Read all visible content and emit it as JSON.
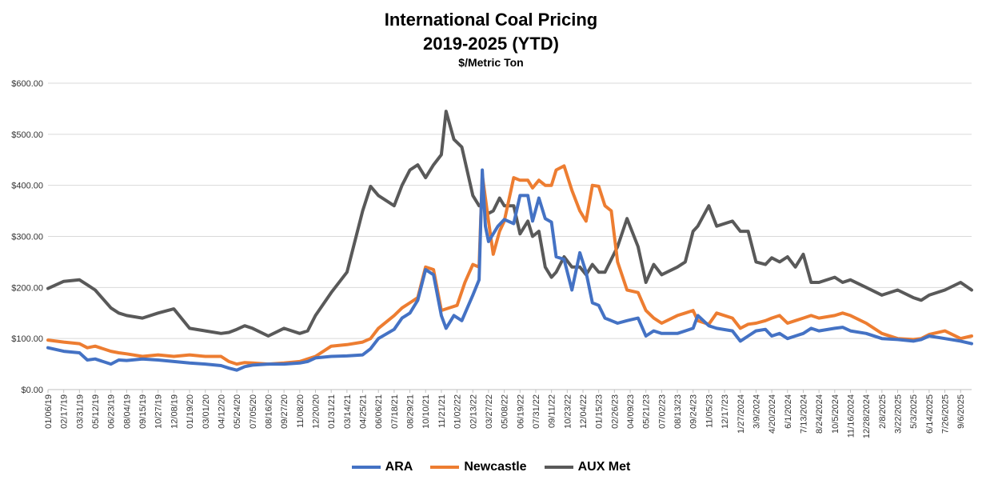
{
  "title": "International Coal Pricing",
  "subtitle": "2019-2025 (YTD)",
  "unit": "$/Metric Ton",
  "chart_data": {
    "type": "line",
    "title": "International Coal Pricing",
    "subtitle": "2019-2025 (YTD)",
    "ylabel": "$/Metric Ton",
    "ylim": [
      0,
      600
    ],
    "yticks": [
      "$0.00",
      "$100.00",
      "$200.00",
      "$300.00",
      "$400.00",
      "$500.00",
      "$600.00"
    ],
    "grid": true,
    "legend_position": "bottom",
    "x_tick_labels": [
      "01/06/19",
      "02/17/19",
      "03/31/19",
      "05/12/19",
      "06/23/19",
      "08/04/19",
      "09/15/19",
      "10/27/19",
      "12/08/19",
      "01/19/20",
      "03/01/20",
      "04/12/20",
      "05/24/20",
      "07/05/20",
      "08/16/20",
      "09/27/20",
      "11/08/20",
      "12/20/20",
      "01/31/21",
      "03/14/21",
      "04/25/21",
      "06/06/21",
      "07/18/21",
      "08/29/21",
      "10/10/21",
      "11/21/21",
      "01/02/22",
      "02/13/22",
      "03/27/22",
      "05/08/22",
      "06/19/22",
      "07/31/22",
      "09/11/22",
      "10/23/22",
      "12/04/22",
      "01/15/23",
      "02/26/23",
      "04/09/23",
      "05/21/23",
      "07/02/23",
      "08/13/23",
      "09/24/23",
      "11/05/23",
      "12/17/23",
      "1/27/2024",
      "3/9/2024",
      "4/20/2024",
      "6/1/2024",
      "7/13/2024",
      "8/24/2024",
      "10/5/2024",
      "11/16/2024",
      "12/28/2024",
      "2/8/2025",
      "3/22/2025",
      "5/3/2025",
      "6/14/2025",
      "7/26/2025",
      "9/6/2025"
    ],
    "x_range": [
      0,
      58.7
    ],
    "series": [
      {
        "name": "ARA",
        "color": "#4472c4",
        "points": [
          [
            0,
            82
          ],
          [
            1,
            75
          ],
          [
            2,
            72
          ],
          [
            2.5,
            58
          ],
          [
            3,
            60
          ],
          [
            4,
            50
          ],
          [
            4.5,
            58
          ],
          [
            5,
            57
          ],
          [
            6,
            60
          ],
          [
            7,
            58
          ],
          [
            8,
            55
          ],
          [
            9,
            52
          ],
          [
            10,
            50
          ],
          [
            11,
            47
          ],
          [
            11.5,
            42
          ],
          [
            12,
            38
          ],
          [
            12.5,
            45
          ],
          [
            13,
            48
          ],
          [
            14,
            50
          ],
          [
            15,
            50
          ],
          [
            16,
            52
          ],
          [
            16.5,
            55
          ],
          [
            17,
            62
          ],
          [
            18,
            65
          ],
          [
            19,
            66
          ],
          [
            20,
            68
          ],
          [
            20.5,
            80
          ],
          [
            21,
            100
          ],
          [
            22,
            118
          ],
          [
            22.5,
            140
          ],
          [
            23,
            150
          ],
          [
            23.5,
            175
          ],
          [
            24,
            235
          ],
          [
            24.5,
            225
          ],
          [
            25,
            145
          ],
          [
            25.3,
            120
          ],
          [
            25.8,
            145
          ],
          [
            26.3,
            135
          ],
          [
            27,
            185
          ],
          [
            27.4,
            215
          ],
          [
            27.6,
            430
          ],
          [
            27.8,
            320
          ],
          [
            28,
            290
          ],
          [
            28.6,
            320
          ],
          [
            29,
            333
          ],
          [
            29.6,
            325
          ],
          [
            30,
            380
          ],
          [
            30.5,
            380
          ],
          [
            30.8,
            330
          ],
          [
            31.2,
            375
          ],
          [
            31.6,
            335
          ],
          [
            32,
            328
          ],
          [
            32.3,
            260
          ],
          [
            32.8,
            255
          ],
          [
            33.3,
            195
          ],
          [
            33.8,
            268
          ],
          [
            34.2,
            230
          ],
          [
            34.6,
            170
          ],
          [
            35,
            165
          ],
          [
            35.4,
            140
          ],
          [
            35.8,
            135
          ],
          [
            36.2,
            130
          ],
          [
            36.8,
            135
          ],
          [
            37.5,
            140
          ],
          [
            38,
            105
          ],
          [
            38.5,
            115
          ],
          [
            39,
            110
          ],
          [
            40,
            110
          ],
          [
            40.5,
            115
          ],
          [
            41,
            120
          ],
          [
            41.3,
            145
          ],
          [
            42,
            125
          ],
          [
            42.5,
            120
          ],
          [
            43.5,
            115
          ],
          [
            44,
            95
          ],
          [
            44.5,
            105
          ],
          [
            45,
            115
          ],
          [
            45.6,
            118
          ],
          [
            46,
            105
          ],
          [
            46.5,
            110
          ],
          [
            47,
            100
          ],
          [
            47.5,
            105
          ],
          [
            48,
            110
          ],
          [
            48.5,
            120
          ],
          [
            49,
            115
          ],
          [
            50,
            120
          ],
          [
            50.5,
            122
          ],
          [
            51,
            115
          ],
          [
            52,
            110
          ],
          [
            53,
            100
          ],
          [
            54,
            98
          ],
          [
            55,
            95
          ],
          [
            55.5,
            98
          ],
          [
            56,
            105
          ],
          [
            57,
            100
          ],
          [
            58,
            95
          ],
          [
            58.7,
            90
          ]
        ]
      },
      {
        "name": "Newcastle",
        "color": "#ed7d31",
        "points": [
          [
            0,
            97
          ],
          [
            1,
            93
          ],
          [
            2,
            90
          ],
          [
            2.5,
            82
          ],
          [
            3,
            85
          ],
          [
            4,
            75
          ],
          [
            4.5,
            72
          ],
          [
            5,
            70
          ],
          [
            6,
            65
          ],
          [
            7,
            68
          ],
          [
            8,
            65
          ],
          [
            9,
            68
          ],
          [
            10,
            65
          ],
          [
            11,
            65
          ],
          [
            11.5,
            55
          ],
          [
            12,
            50
          ],
          [
            12.5,
            53
          ],
          [
            13,
            52
          ],
          [
            14,
            50
          ],
          [
            15,
            52
          ],
          [
            16,
            55
          ],
          [
            16.5,
            60
          ],
          [
            17,
            65
          ],
          [
            18,
            85
          ],
          [
            19,
            88
          ],
          [
            20,
            93
          ],
          [
            20.5,
            100
          ],
          [
            21,
            120
          ],
          [
            22,
            145
          ],
          [
            22.5,
            160
          ],
          [
            23,
            170
          ],
          [
            23.5,
            180
          ],
          [
            24,
            240
          ],
          [
            24.5,
            235
          ],
          [
            25,
            155
          ],
          [
            25.5,
            160
          ],
          [
            26,
            165
          ],
          [
            26.5,
            210
          ],
          [
            27,
            245
          ],
          [
            27.4,
            240
          ],
          [
            27.6,
            420
          ],
          [
            28,
            330
          ],
          [
            28.3,
            265
          ],
          [
            28.7,
            310
          ],
          [
            29,
            330
          ],
          [
            29.6,
            415
          ],
          [
            30,
            410
          ],
          [
            30.5,
            410
          ],
          [
            30.8,
            395
          ],
          [
            31.2,
            410
          ],
          [
            31.6,
            400
          ],
          [
            32,
            400
          ],
          [
            32.3,
            430
          ],
          [
            32.8,
            438
          ],
          [
            33.3,
            390
          ],
          [
            33.8,
            350
          ],
          [
            34.2,
            330
          ],
          [
            34.6,
            400
          ],
          [
            35,
            398
          ],
          [
            35.4,
            360
          ],
          [
            35.8,
            350
          ],
          [
            36.2,
            250
          ],
          [
            36.8,
            195
          ],
          [
            37.5,
            190
          ],
          [
            38,
            155
          ],
          [
            38.5,
            140
          ],
          [
            39,
            130
          ],
          [
            40,
            145
          ],
          [
            40.5,
            150
          ],
          [
            41,
            155
          ],
          [
            41.3,
            135
          ],
          [
            42,
            128
          ],
          [
            42.5,
            150
          ],
          [
            43.5,
            140
          ],
          [
            44,
            120
          ],
          [
            44.5,
            128
          ],
          [
            45,
            130
          ],
          [
            45.6,
            135
          ],
          [
            46,
            140
          ],
          [
            46.5,
            145
          ],
          [
            47,
            130
          ],
          [
            47.5,
            135
          ],
          [
            48,
            140
          ],
          [
            48.5,
            145
          ],
          [
            49,
            140
          ],
          [
            50,
            145
          ],
          [
            50.5,
            150
          ],
          [
            51,
            145
          ],
          [
            52,
            130
          ],
          [
            53,
            110
          ],
          [
            54,
            100
          ],
          [
            55,
            98
          ],
          [
            55.5,
            100
          ],
          [
            56,
            108
          ],
          [
            57,
            115
          ],
          [
            58,
            100
          ],
          [
            58.7,
            105
          ]
        ]
      },
      {
        "name": "AUX Met",
        "color": "#595959",
        "points": [
          [
            0,
            198
          ],
          [
            1,
            212
          ],
          [
            2,
            215
          ],
          [
            2.5,
            205
          ],
          [
            3,
            195
          ],
          [
            4,
            160
          ],
          [
            4.5,
            150
          ],
          [
            5,
            145
          ],
          [
            6,
            140
          ],
          [
            7,
            150
          ],
          [
            8,
            158
          ],
          [
            9,
            120
          ],
          [
            10,
            115
          ],
          [
            11,
            110
          ],
          [
            11.5,
            112
          ],
          [
            12,
            118
          ],
          [
            12.5,
            125
          ],
          [
            13,
            120
          ],
          [
            14,
            105
          ],
          [
            15,
            120
          ],
          [
            16,
            110
          ],
          [
            16.5,
            115
          ],
          [
            17,
            145
          ],
          [
            18,
            190
          ],
          [
            19,
            230
          ],
          [
            20,
            350
          ],
          [
            20.5,
            398
          ],
          [
            21,
            380
          ],
          [
            22,
            360
          ],
          [
            22.5,
            400
          ],
          [
            23,
            430
          ],
          [
            23.5,
            440
          ],
          [
            24,
            415
          ],
          [
            24.5,
            440
          ],
          [
            25,
            460
          ],
          [
            25.3,
            545
          ],
          [
            25.8,
            490
          ],
          [
            26.3,
            475
          ],
          [
            27,
            380
          ],
          [
            27.4,
            360
          ],
          [
            27.6,
            362
          ],
          [
            28,
            345
          ],
          [
            28.3,
            350
          ],
          [
            28.7,
            375
          ],
          [
            29,
            360
          ],
          [
            29.6,
            360
          ],
          [
            30,
            305
          ],
          [
            30.5,
            330
          ],
          [
            30.8,
            300
          ],
          [
            31.2,
            310
          ],
          [
            31.6,
            240
          ],
          [
            32,
            220
          ],
          [
            32.3,
            230
          ],
          [
            32.8,
            260
          ],
          [
            33.3,
            240
          ],
          [
            33.8,
            240
          ],
          [
            34.2,
            225
          ],
          [
            34.6,
            245
          ],
          [
            35,
            230
          ],
          [
            35.4,
            230
          ],
          [
            35.8,
            255
          ],
          [
            36.2,
            280
          ],
          [
            36.8,
            335
          ],
          [
            37.5,
            280
          ],
          [
            38,
            210
          ],
          [
            38.5,
            245
          ],
          [
            39,
            225
          ],
          [
            40,
            240
          ],
          [
            40.5,
            250
          ],
          [
            41,
            310
          ],
          [
            41.3,
            320
          ],
          [
            42,
            360
          ],
          [
            42.5,
            320
          ],
          [
            43.5,
            330
          ],
          [
            44,
            310
          ],
          [
            44.5,
            310
          ],
          [
            45,
            250
          ],
          [
            45.6,
            245
          ],
          [
            46,
            258
          ],
          [
            46.5,
            250
          ],
          [
            47,
            260
          ],
          [
            47.5,
            240
          ],
          [
            48,
            265
          ],
          [
            48.5,
            210
          ],
          [
            49,
            210
          ],
          [
            50,
            220
          ],
          [
            50.5,
            210
          ],
          [
            51,
            215
          ],
          [
            52,
            200
          ],
          [
            53,
            185
          ],
          [
            54,
            195
          ],
          [
            55,
            180
          ],
          [
            55.5,
            175
          ],
          [
            56,
            185
          ],
          [
            57,
            195
          ],
          [
            58,
            210
          ],
          [
            58.7,
            195
          ]
        ]
      }
    ]
  }
}
